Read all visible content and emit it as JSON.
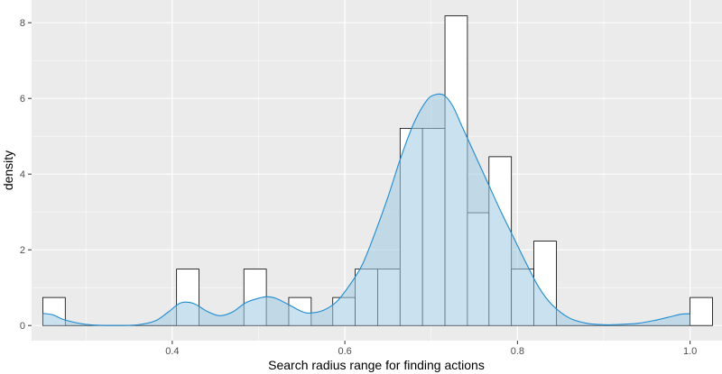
{
  "chart_data": {
    "type": "histogram",
    "title": "",
    "xlabel": "Search radius range for finding actions",
    "ylabel": "density",
    "xlim": [
      0.237,
      1.037
    ],
    "ylim": [
      -0.4,
      8.6
    ],
    "x_ticks": [
      0.4,
      0.6,
      0.8,
      1.0
    ],
    "x_tick_labels": [
      "0.4",
      "0.6",
      "0.8",
      "1.0"
    ],
    "y_ticks": [
      0,
      2,
      4,
      6,
      8
    ],
    "y_tick_labels": [
      "0",
      "2",
      "4",
      "6",
      "8"
    ],
    "grid": true,
    "legend": "none",
    "bins": [
      {
        "x0": 0.25,
        "x1": 0.276,
        "density": 0.74
      },
      {
        "x0": 0.276,
        "x1": 0.302,
        "density": 0
      },
      {
        "x0": 0.302,
        "x1": 0.328,
        "density": 0
      },
      {
        "x0": 0.328,
        "x1": 0.354,
        "density": 0
      },
      {
        "x0": 0.354,
        "x1": 0.38,
        "density": 0
      },
      {
        "x0": 0.38,
        "x1": 0.405,
        "density": 0
      },
      {
        "x0": 0.405,
        "x1": 0.431,
        "density": 1.49
      },
      {
        "x0": 0.431,
        "x1": 0.457,
        "density": 0
      },
      {
        "x0": 0.457,
        "x1": 0.483,
        "density": 0
      },
      {
        "x0": 0.483,
        "x1": 0.509,
        "density": 1.49
      },
      {
        "x0": 0.509,
        "x1": 0.535,
        "density": 0
      },
      {
        "x0": 0.535,
        "x1": 0.561,
        "density": 0.74
      },
      {
        "x0": 0.561,
        "x1": 0.586,
        "density": 0
      },
      {
        "x0": 0.586,
        "x1": 0.612,
        "density": 0.74
      },
      {
        "x0": 0.612,
        "x1": 0.638,
        "density": 1.49
      },
      {
        "x0": 0.638,
        "x1": 0.664,
        "density": 1.49
      },
      {
        "x0": 0.664,
        "x1": 0.69,
        "density": 5.21
      },
      {
        "x0": 0.69,
        "x1": 0.716,
        "density": 5.21
      },
      {
        "x0": 0.716,
        "x1": 0.742,
        "density": 8.18
      },
      {
        "x0": 0.742,
        "x1": 0.767,
        "density": 2.98
      },
      {
        "x0": 0.767,
        "x1": 0.793,
        "density": 4.46
      },
      {
        "x0": 0.793,
        "x1": 0.819,
        "density": 1.49
      },
      {
        "x0": 0.819,
        "x1": 0.845,
        "density": 2.23
      },
      {
        "x0": 0.845,
        "x1": 0.871,
        "density": 0
      },
      {
        "x0": 0.871,
        "x1": 0.897,
        "density": 0
      },
      {
        "x0": 0.897,
        "x1": 0.923,
        "density": 0
      },
      {
        "x0": 0.923,
        "x1": 0.948,
        "density": 0
      },
      {
        "x0": 0.948,
        "x1": 0.974,
        "density": 0
      },
      {
        "x0": 0.974,
        "x1": 1.0,
        "density": 0
      },
      {
        "x0": 1.0,
        "x1": 1.026,
        "density": 0.74
      }
    ],
    "density_curve": {
      "x": [
        0.25,
        0.262,
        0.275,
        0.3,
        0.33,
        0.36,
        0.38,
        0.395,
        0.41,
        0.425,
        0.44,
        0.455,
        0.47,
        0.485,
        0.5,
        0.51,
        0.52,
        0.535,
        0.55,
        0.56,
        0.575,
        0.59,
        0.605,
        0.62,
        0.635,
        0.65,
        0.665,
        0.68,
        0.695,
        0.705,
        0.715,
        0.725,
        0.735,
        0.75,
        0.765,
        0.78,
        0.795,
        0.81,
        0.825,
        0.84,
        0.86,
        0.88,
        0.9,
        0.92,
        0.94,
        0.96,
        0.975,
        0.99,
        1.0
      ],
      "y": [
        0.32,
        0.28,
        0.15,
        0.03,
        0.0,
        0.02,
        0.12,
        0.35,
        0.6,
        0.58,
        0.38,
        0.26,
        0.36,
        0.6,
        0.72,
        0.76,
        0.72,
        0.55,
        0.37,
        0.33,
        0.4,
        0.62,
        1.05,
        1.6,
        2.45,
        3.4,
        4.45,
        5.35,
        5.95,
        6.1,
        6.08,
        5.8,
        5.3,
        4.55,
        3.8,
        3.05,
        2.35,
        1.65,
        1.0,
        0.55,
        0.2,
        0.06,
        0.02,
        0.03,
        0.06,
        0.14,
        0.22,
        0.3,
        0.31
      ]
    },
    "colors": {
      "panel": "#ebebeb",
      "grid_major": "#ffffff",
      "bar_fill": "#ffffff",
      "bar_stroke": "#000000",
      "density_fill": "#9ecae1",
      "density_line": "#1f8bd0"
    }
  }
}
